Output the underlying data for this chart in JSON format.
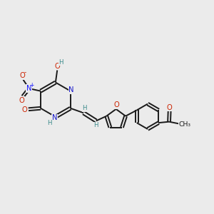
{
  "bg_color": "#ebebeb",
  "bond_color": "#1a1a1a",
  "N_color": "#1414cc",
  "O_color": "#cc2200",
  "H_color": "#3a8a8a",
  "NO2_N_color": "#1414ff",
  "NO2_O_color": "#cc2200",
  "figsize": [
    3.0,
    3.0
  ],
  "dpi": 100,
  "xlim": [
    0,
    10
  ],
  "ylim": [
    0,
    10
  ]
}
